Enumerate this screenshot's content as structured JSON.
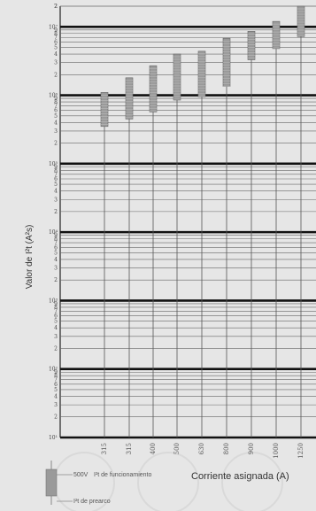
{
  "chart_data": {
    "type": "bar",
    "ylabel": "Valor de I²t (A²s)",
    "xlabel": "Corriente asignada (A)",
    "y_scale": "log",
    "decade_labels": [
      "10⁷",
      "10⁶",
      "10⁵",
      "10⁴",
      "10³",
      "10²",
      "10¹"
    ],
    "minor_labels": [
      "2",
      "8",
      "6",
      "5",
      "4",
      "3",
      "2"
    ],
    "categories": [
      "315",
      "315",
      "400",
      "500",
      "630",
      "800",
      "900",
      "1000",
      "1250"
    ],
    "series": [
      {
        "name": "I²t de prearco",
        "values": [
          350000,
          450000,
          570000,
          850000,
          950000,
          1350000,
          3300000,
          4800000,
          7200000
        ]
      },
      {
        "name": "500V I²t de funcionamiento",
        "values": [
          1100000,
          1800000,
          2700000,
          4000000,
          4400000,
          6800000,
          8600000,
          12000000,
          20000000
        ]
      }
    ],
    "ylim": [
      10,
      20000000
    ],
    "grid": true,
    "legend": [
      {
        "label": "500V",
        "text": "I²t de funcionamiento"
      },
      {
        "label": "",
        "text": "I²t de prearco"
      }
    ]
  }
}
